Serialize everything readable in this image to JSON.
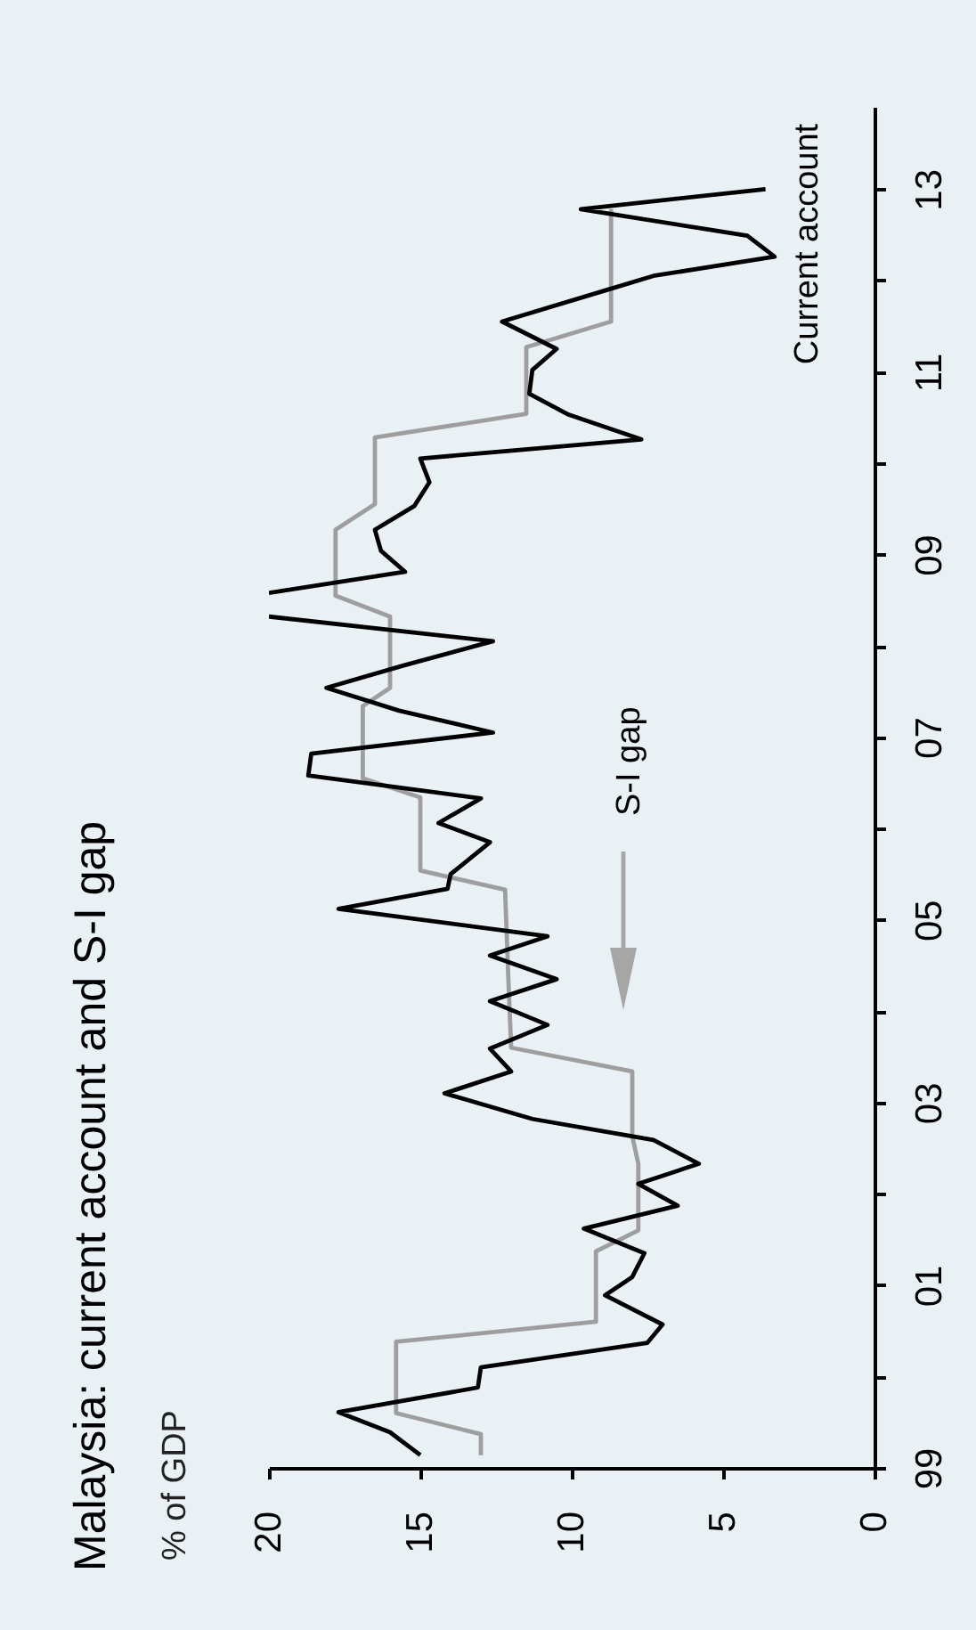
{
  "chart_data": {
    "type": "line",
    "title": "Malaysia: current account and S-I gap",
    "subtitle": "% of GDP",
    "series": [
      {
        "name": "Current account",
        "color": "#000000",
        "x": [
          1999.14,
          1999.39,
          1999.61,
          1999.88,
          2000.1,
          2000.37,
          2000.57,
          2000.89,
          2001.09,
          2001.35,
          2001.62,
          2001.87,
          2002.11,
          2002.33,
          2002.59,
          2002.82,
          2003.1,
          2003.34,
          2003.59,
          2003.85,
          2004.11,
          2004.35,
          2004.61,
          2004.82,
          2005.12,
          2005.34,
          2005.5,
          2005.85,
          2006.06,
          2006.33,
          2006.58,
          2006.82,
          2007.05,
          2007.29,
          2007.54,
          2007.79,
          2008.05,
          2008.32,
          2008.45,
          2008.58,
          2008.81,
          2009.04,
          2009.27,
          2009.53,
          2009.79,
          2010.05,
          2010.26,
          2010.53,
          2010.76,
          2011.02,
          2011.25,
          2011.55,
          2011.9,
          2012.05,
          2012.26,
          2012.49,
          2012.78,
          2013.0
        ],
        "values": [
          15.0,
          16.0,
          17.7,
          13.1,
          13.0,
          7.5,
          7.0,
          8.9,
          8.0,
          7.6,
          9.6,
          6.5,
          7.8,
          5.8,
          7.3,
          11.3,
          14.2,
          12.0,
          12.7,
          10.8,
          12.7,
          10.5,
          12.7,
          10.8,
          17.7,
          14.1,
          14.0,
          12.7,
          14.4,
          13.0,
          18.7,
          18.6,
          12.6,
          15.7,
          18.1,
          15.5,
          12.6,
          20,
          null,
          20,
          15.5,
          16.3,
          16.5,
          15.2,
          14.7,
          15.0,
          7.7,
          10.1,
          11.4,
          11.3,
          10.5,
          12.3,
          8.8,
          7.3,
          3.3,
          4.2,
          9.7,
          3.6
        ]
      },
      {
        "name": "S-I gap",
        "color": "#9e9e9e",
        "x": [
          1999.14,
          1999.37,
          1999.6,
          2000.38,
          2000.6,
          2001.37,
          2001.6,
          2002.33,
          2002.63,
          2003.34,
          2003.6,
          2004.42,
          2005.33,
          2005.54,
          2006.34,
          2006.55,
          2007.34,
          2007.54,
          2008.32,
          2008.55,
          2009.27,
          2009.55,
          2010.28,
          2010.54,
          2011.27,
          2011.55,
          2012.78
        ],
        "values": [
          13.0,
          13.0,
          15.8,
          15.8,
          9.2,
          9.2,
          7.8,
          7.8,
          8.0,
          8.0,
          12.0,
          12.1,
          12.2,
          15.0,
          15.0,
          16.9,
          16.9,
          16.0,
          16.0,
          17.8,
          17.8,
          16.5,
          16.5,
          11.5,
          11.5,
          8.7,
          8.7
        ]
      }
    ],
    "orientation": "horizontal",
    "xlim": [
      20,
      0
    ],
    "xticks": [
      0,
      5,
      10,
      15,
      20
    ],
    "ylim": [
      1999,
      2013.9
    ],
    "yticks": [
      {
        "value": 1999,
        "label": "99"
      },
      {
        "value": 2000,
        "label": null
      },
      {
        "value": 2001,
        "label": "01"
      },
      {
        "value": 2002,
        "label": null
      },
      {
        "value": 2003,
        "label": "03"
      },
      {
        "value": 2004,
        "label": null
      },
      {
        "value": 2005,
        "label": "05"
      },
      {
        "value": 2006,
        "label": null
      },
      {
        "value": 2007,
        "label": "07"
      },
      {
        "value": 2008,
        "label": null
      },
      {
        "value": 2009,
        "label": "09"
      },
      {
        "value": 2010,
        "label": null
      },
      {
        "value": 2011,
        "label": "11"
      },
      {
        "value": 2012,
        "label": null
      },
      {
        "value": 2013,
        "label": "13"
      }
    ],
    "grid": false
  }
}
